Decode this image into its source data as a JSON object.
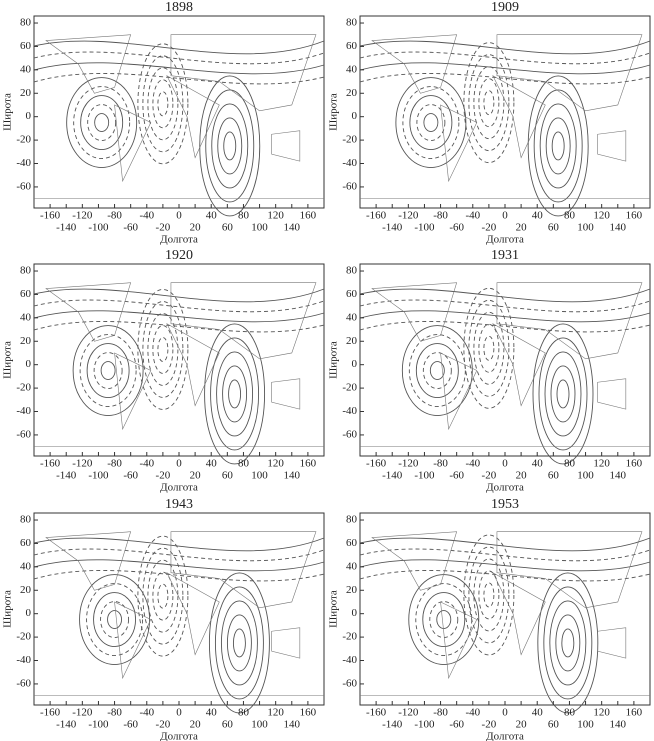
{
  "axes": {
    "x_label": "Долгота",
    "y_label": "Широта",
    "xlim": [
      -180,
      180
    ],
    "ylim": [
      -78,
      86
    ],
    "xticks": [
      -160,
      -140,
      -120,
      -100,
      -80,
      -60,
      -40,
      -20,
      0,
      20,
      40,
      60,
      80,
      100,
      120,
      140,
      160
    ],
    "yticks": [
      80,
      60,
      40,
      20,
      0,
      -20,
      -40,
      -60
    ]
  },
  "panels": [
    {
      "title": "1898"
    },
    {
      "title": "1909"
    },
    {
      "title": "1920"
    },
    {
      "title": "1931"
    },
    {
      "title": "1943"
    },
    {
      "title": "1953"
    }
  ]
}
